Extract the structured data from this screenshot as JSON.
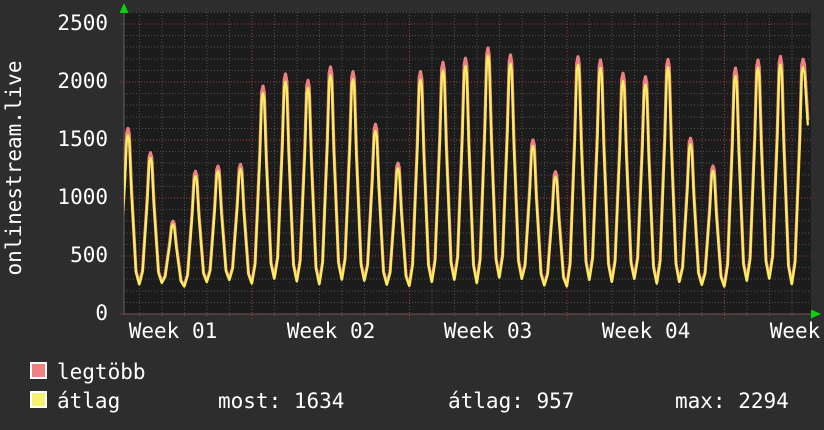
{
  "colors": {
    "page_bg": "#2d2d2d",
    "plot_bg": "#1c1c1c",
    "text": "#ffffff"
  },
  "chart_data": {
    "type": "line",
    "title": "",
    "xlabel": "",
    "ylabel": "onlinestream.live",
    "ylim": [
      0,
      2600
    ],
    "y_ticks": [
      0,
      500,
      1000,
      1500,
      2000,
      2500
    ],
    "x_tick_labels": [
      "Week 01",
      "Week 02",
      "Week 03",
      "Week 04",
      "Week"
    ],
    "grid": {
      "on": true,
      "major_color": "#a83d3d",
      "minor_color": "#4f4f4f",
      "axis_color": "#5f5f5f",
      "arrow_color": "#0ad20a"
    },
    "legend_position": "bottom",
    "series": [
      {
        "name": "legtöbb",
        "color": "#ee7f7f",
        "line_width": 3.2,
        "end_value": 1682,
        "daily_peaks": [
          1600,
          1390,
          800,
          1230,
          1275,
          1290,
          1965,
          2070,
          2015,
          2130,
          2090,
          1635,
          1300,
          2090,
          2170,
          2205,
          2294,
          2233,
          1500,
          1227,
          2218,
          2190,
          2075,
          2046,
          2195,
          1515,
          1276,
          2120,
          2190,
          2220,
          2196
        ]
      },
      {
        "name": "átlag",
        "color": "#f6f05e",
        "line_width": 2.3,
        "end_value": 1634,
        "daily_peaks": [
          1540,
          1345,
          772,
          1188,
          1232,
          1248,
          1902,
          2002,
          1948,
          2058,
          2022,
          1578,
          1256,
          2020,
          2098,
          2136,
          2226,
          2158,
          1448,
          1184,
          2148,
          2120,
          2006,
          1978,
          2124,
          1462,
          1232,
          2050,
          2122,
          2150,
          2126
        ]
      },
      {
        "name": "troughs_shared",
        "color": null,
        "line_width": 0,
        "end_value": null,
        "daily_peaks": [
          350,
          255,
          268,
          236,
          274,
          293,
          262,
          304,
          281,
          257,
          296,
          287,
          252,
          241,
          276,
          295,
          266,
          313,
          303,
          246,
          237,
          294,
          277,
          303,
          262,
          276,
          251,
          236,
          286,
          304,
          257,
          299
        ]
      }
    ],
    "summary": {
      "most": 1634,
      "atlag": 957,
      "max": 2294
    }
  },
  "legend": {
    "items": [
      {
        "label": "legtöbb",
        "color": "#ef8181"
      },
      {
        "label": "átlag",
        "color": "#f8f36e"
      }
    ],
    "stats": [
      {
        "label": "most",
        "value": "1634"
      },
      {
        "label": "átlag",
        "value": "957"
      },
      {
        "label": "max",
        "value": "2294"
      }
    ]
  }
}
